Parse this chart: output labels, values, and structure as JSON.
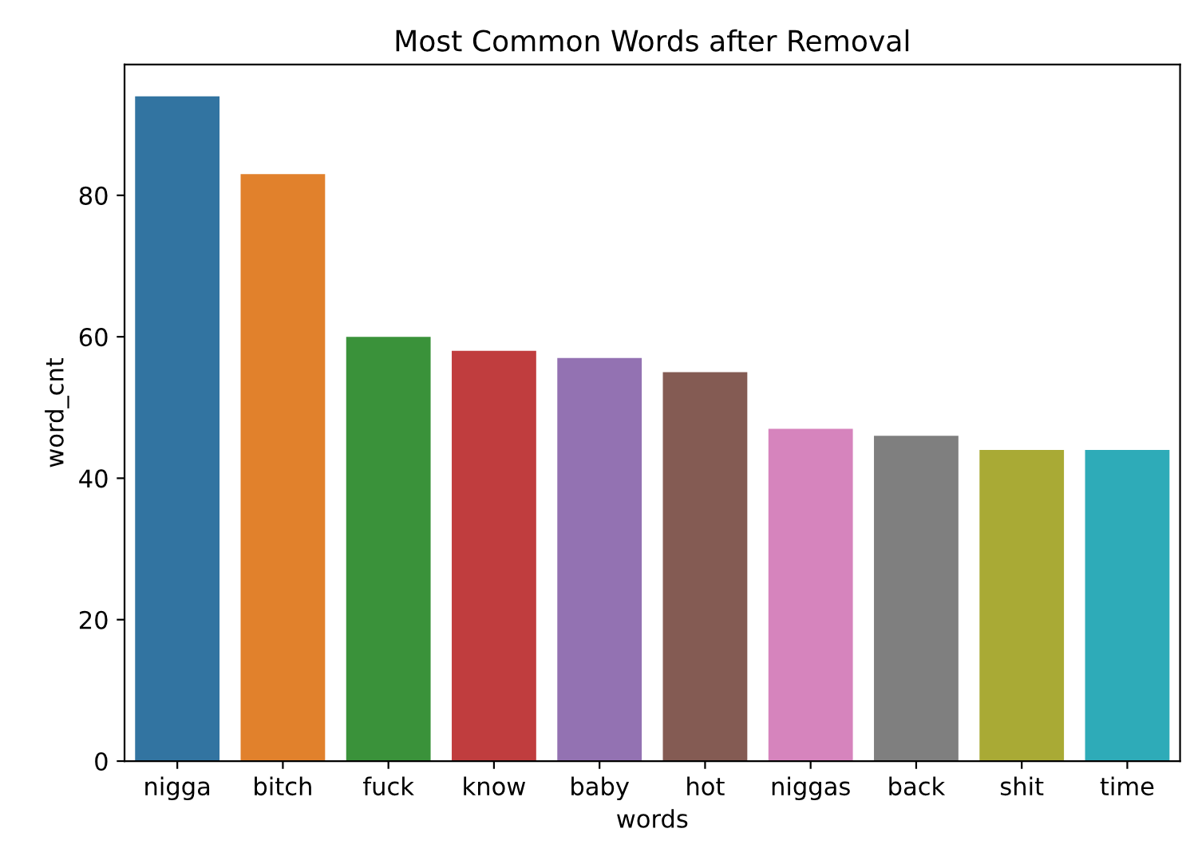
{
  "chart_data": {
    "type": "bar",
    "title": "Most Common Words after Removal",
    "xlabel": "words",
    "ylabel": "word_cnt",
    "categories": [
      "nigga",
      "bitch",
      "fuck",
      "know",
      "baby",
      "hot",
      "niggas",
      "back",
      "shit",
      "time"
    ],
    "values": [
      94,
      83,
      60,
      58,
      57,
      55,
      47,
      46,
      44,
      44
    ],
    "colors": [
      "#3274a1",
      "#e1812c",
      "#3a923a",
      "#c03d3e",
      "#9372b2",
      "#845b53",
      "#d684bd",
      "#7f7f7f",
      "#a9aa35",
      "#2eabb8"
    ],
    "ylim": [
      0,
      98.5
    ],
    "yticks": [
      0,
      20,
      40,
      60,
      80
    ],
    "grid": false,
    "legend": false
  }
}
